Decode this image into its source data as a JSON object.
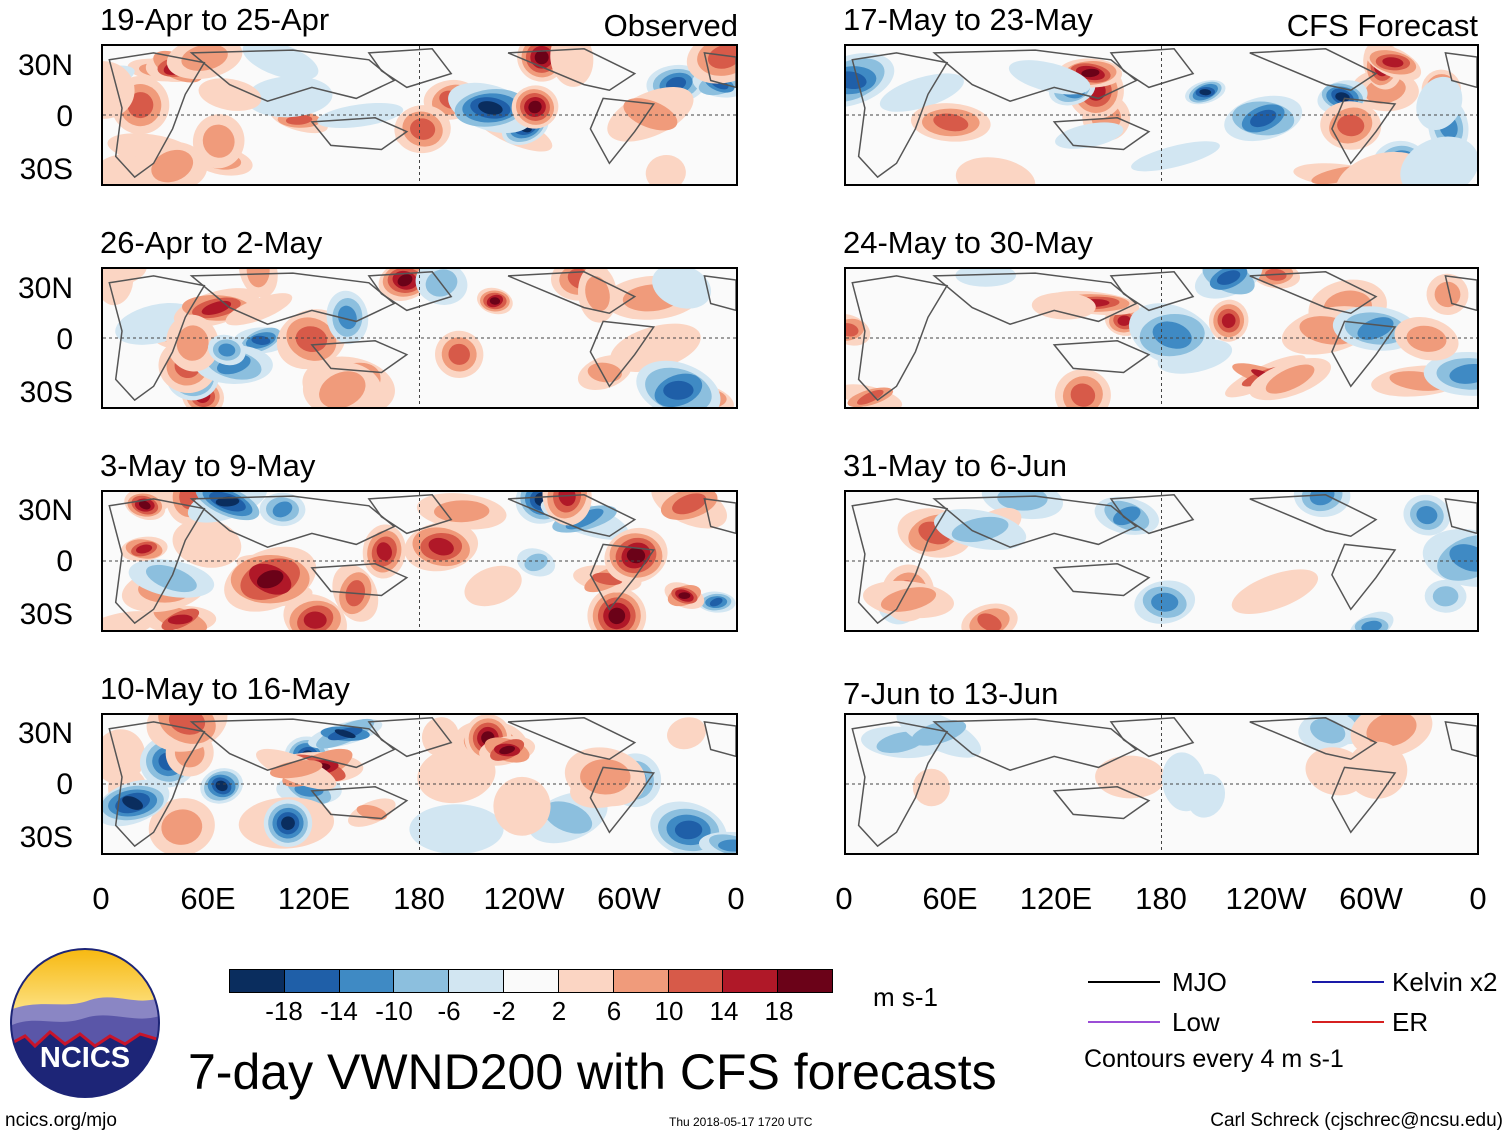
{
  "columns": {
    "left_label": "Observed",
    "right_label": "CFS Forecast"
  },
  "panels_left": [
    {
      "title": "19-Apr to 25-Apr"
    },
    {
      "title": "26-Apr to 2-May"
    },
    {
      "title": "3-May to 9-May"
    },
    {
      "title": "10-May to 16-May"
    }
  ],
  "panels_right": [
    {
      "title": "17-May to 23-May"
    },
    {
      "title": "24-May to 30-May"
    },
    {
      "title": "31-May to 6-Jun"
    },
    {
      "title": "7-Jun to 13-Jun"
    }
  ],
  "lat_labels": [
    "30N",
    "0",
    "30S"
  ],
  "lon_labels": [
    "0",
    "60E",
    "120E",
    "180",
    "120W",
    "60W",
    "0"
  ],
  "colorbar": {
    "colors": [
      "#0a2d5e",
      "#1f5fa8",
      "#3f8ac4",
      "#8cbfde",
      "#d2e6f2",
      "#fafafa",
      "#fbd5c3",
      "#f09b7b",
      "#d75a49",
      "#b01828",
      "#6b0218"
    ],
    "ticks": [
      "-18",
      "-14",
      "-10",
      "-6",
      "-2",
      "2",
      "6",
      "10",
      "14",
      "18"
    ],
    "units": "m s-1"
  },
  "legend": [
    {
      "label": "MJO",
      "color": "#000000"
    },
    {
      "label": "Kelvin x2",
      "color": "#1a1aa8"
    },
    {
      "label": "Low",
      "color": "#9b4dd6"
    },
    {
      "label": "ER",
      "color": "#d62020"
    }
  ],
  "contour_note": "Contours every 4 m s-1",
  "title": "7-day VWND200 with CFS forecasts",
  "logo_text": "NCICS",
  "footer": {
    "url": "ncics.org/mjo",
    "timestamp": "Thu 2018-05-17 1720 UTC",
    "author": "Carl Schreck (cjschrec@ncsu.edu)"
  }
}
